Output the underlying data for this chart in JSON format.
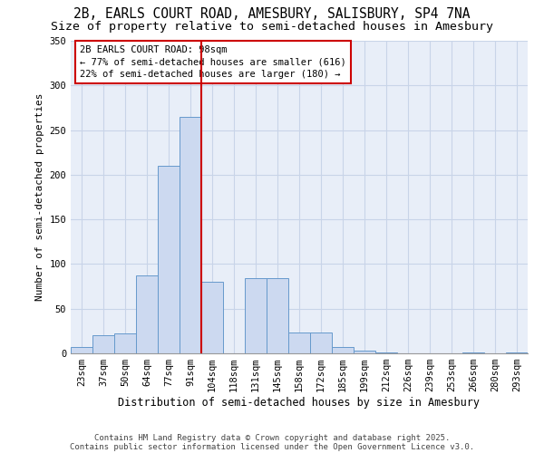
{
  "title1": "2B, EARLS COURT ROAD, AMESBURY, SALISBURY, SP4 7NA",
  "title2": "Size of property relative to semi-detached houses in Amesbury",
  "xlabel": "Distribution of semi-detached houses by size in Amesbury",
  "ylabel": "Number of semi-detached properties",
  "categories": [
    "23sqm",
    "37sqm",
    "50sqm",
    "64sqm",
    "77sqm",
    "91sqm",
    "104sqm",
    "118sqm",
    "131sqm",
    "145sqm",
    "158sqm",
    "172sqm",
    "185sqm",
    "199sqm",
    "212sqm",
    "226sqm",
    "239sqm",
    "253sqm",
    "266sqm",
    "280sqm",
    "293sqm"
  ],
  "values": [
    7,
    20,
    22,
    87,
    210,
    265,
    80,
    0,
    84,
    84,
    23,
    23,
    7,
    3,
    1,
    0,
    0,
    0,
    1,
    0,
    1
  ],
  "bar_color": "#ccd9f0",
  "bar_edge_color": "#6699cc",
  "red_line_color": "#cc0000",
  "annotation_text": "2B EARLS COURT ROAD: 98sqm\n← 77% of semi-detached houses are smaller (616)\n22% of semi-detached houses are larger (180) →",
  "annotation_box_color": "#ffffff",
  "annotation_box_edge": "#cc0000",
  "grid_color": "#c8d4e8",
  "background_color": "#e8eef8",
  "ylim": [
    0,
    350
  ],
  "yticks": [
    0,
    50,
    100,
    150,
    200,
    250,
    300,
    350
  ],
  "footnote1": "Contains HM Land Registry data © Crown copyright and database right 2025.",
  "footnote2": "Contains public sector information licensed under the Open Government Licence v3.0.",
  "title1_fontsize": 10.5,
  "title2_fontsize": 9.5,
  "xlabel_fontsize": 8.5,
  "ylabel_fontsize": 8,
  "tick_fontsize": 7.5,
  "annotation_fontsize": 7.5,
  "footnote_fontsize": 6.5
}
